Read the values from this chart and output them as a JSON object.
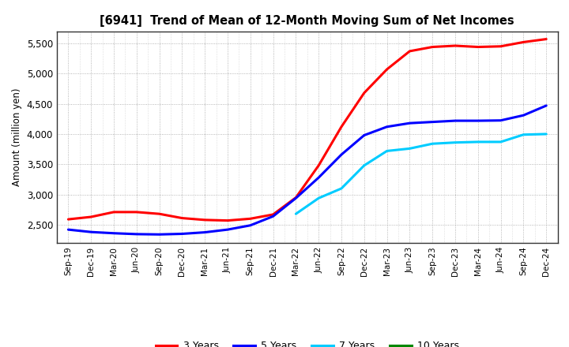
{
  "title": "[6941]  Trend of Mean of 12-Month Moving Sum of Net Incomes",
  "ylabel": "Amount (million yen)",
  "background_color": "#ffffff",
  "plot_bg_color": "#f5f5f5",
  "grid_color": "#999999",
  "ylim": [
    2200,
    5700
  ],
  "yticks": [
    2500,
    3000,
    3500,
    4000,
    4500,
    5000,
    5500
  ],
  "x_labels": [
    "Sep-19",
    "Dec-19",
    "Mar-20",
    "Jun-20",
    "Sep-20",
    "Dec-20",
    "Mar-21",
    "Jun-21",
    "Sep-21",
    "Dec-21",
    "Mar-22",
    "Jun-22",
    "Sep-22",
    "Dec-22",
    "Mar-23",
    "Jun-23",
    "Sep-23",
    "Dec-23",
    "Mar-24",
    "Jun-24",
    "Sep-24",
    "Dec-24"
  ],
  "series": {
    "3 Years": {
      "color": "#ff0000",
      "data_x": [
        0,
        1,
        2,
        3,
        4,
        5,
        6,
        7,
        8,
        9,
        10,
        11,
        12,
        13,
        14,
        15,
        16,
        17,
        18,
        19,
        20,
        21
      ],
      "data_y": [
        2590,
        2630,
        2710,
        2710,
        2680,
        2610,
        2580,
        2570,
        2600,
        2670,
        2950,
        3480,
        4120,
        4680,
        5070,
        5370,
        5440,
        5460,
        5440,
        5450,
        5520,
        5570
      ]
    },
    "5 Years": {
      "color": "#0000ff",
      "data_x": [
        0,
        1,
        2,
        3,
        4,
        5,
        6,
        7,
        8,
        9,
        10,
        11,
        12,
        13,
        14,
        15,
        16,
        17,
        18,
        19,
        20,
        21
      ],
      "data_y": [
        2420,
        2380,
        2360,
        2345,
        2340,
        2350,
        2375,
        2420,
        2490,
        2640,
        2940,
        3280,
        3660,
        3980,
        4120,
        4180,
        4200,
        4220,
        4220,
        4225,
        4310,
        4470
      ]
    },
    "7 Years": {
      "color": "#00ccff",
      "data_x": [
        10,
        11,
        12,
        13,
        14,
        15,
        16,
        17,
        18,
        19,
        20,
        21
      ],
      "data_y": [
        2680,
        2940,
        3100,
        3480,
        3720,
        3760,
        3840,
        3860,
        3870,
        3870,
        3990,
        4000
      ]
    },
    "10 Years": {
      "color": "#008800",
      "data_x": [],
      "data_y": []
    }
  },
  "legend_labels": [
    "3 Years",
    "5 Years",
    "7 Years",
    "10 Years"
  ],
  "legend_colors": [
    "#ff0000",
    "#0000ff",
    "#00ccff",
    "#008800"
  ]
}
